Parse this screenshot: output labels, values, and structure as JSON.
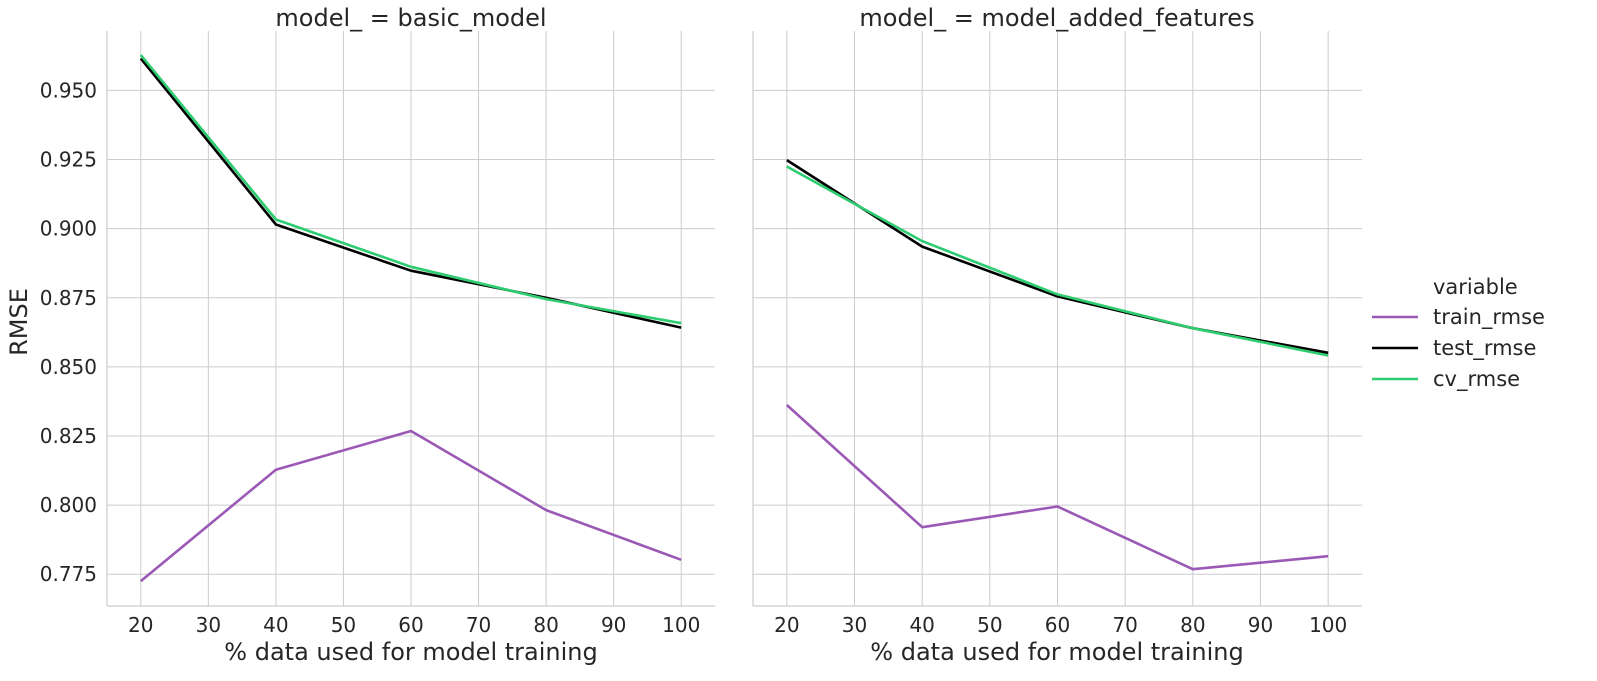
{
  "chart_data": {
    "type": "line",
    "x": [
      20,
      40,
      60,
      80,
      100
    ],
    "xlim": [
      15,
      105
    ],
    "ylim": [
      0.7635,
      0.9715
    ],
    "xticks": [
      20,
      30,
      40,
      50,
      60,
      70,
      80,
      90,
      100
    ],
    "xtick_labels": [
      "20",
      "30",
      "40",
      "50",
      "60",
      "70",
      "80",
      "90",
      "100"
    ],
    "yticks": [
      0.775,
      0.8,
      0.825,
      0.85,
      0.875,
      0.9,
      0.925,
      0.95
    ],
    "ytick_labels": [
      "0.775",
      "0.800",
      "0.825",
      "0.850",
      "0.875",
      "0.900",
      "0.925",
      "0.950"
    ],
    "ylabel": "RMSE",
    "xlabel": "% data used for model training",
    "grid": true,
    "legend": {
      "title": "variable",
      "placement": "right"
    },
    "series_styles": [
      {
        "name": "train_rmse",
        "color": "#9b59b6"
      },
      {
        "name": "test_rmse",
        "color": "#000000"
      },
      {
        "name": "cv_rmse",
        "color": "#2ecc71"
      }
    ],
    "panels": [
      {
        "title": "model_ = basic_model",
        "series": [
          {
            "name": "train_rmse",
            "values": [
              0.7725,
              0.8128,
              0.8268,
              0.7982,
              0.7802
            ]
          },
          {
            "name": "test_rmse",
            "values": [
              0.9615,
              0.9015,
              0.8848,
              0.875,
              0.8642
            ]
          },
          {
            "name": "cv_rmse",
            "values": [
              0.9628,
              0.9033,
              0.8862,
              0.8745,
              0.8658
            ]
          }
        ]
      },
      {
        "title": "model_ = model_added_features",
        "series": [
          {
            "name": "train_rmse",
            "values": [
              0.8362,
              0.792,
              0.7995,
              0.7768,
              0.7815
            ]
          },
          {
            "name": "test_rmse",
            "values": [
              0.9248,
              0.8935,
              0.8755,
              0.864,
              0.8551
            ]
          },
          {
            "name": "cv_rmse",
            "values": [
              0.9225,
              0.8955,
              0.8762,
              0.864,
              0.8541
            ]
          }
        ]
      }
    ]
  }
}
